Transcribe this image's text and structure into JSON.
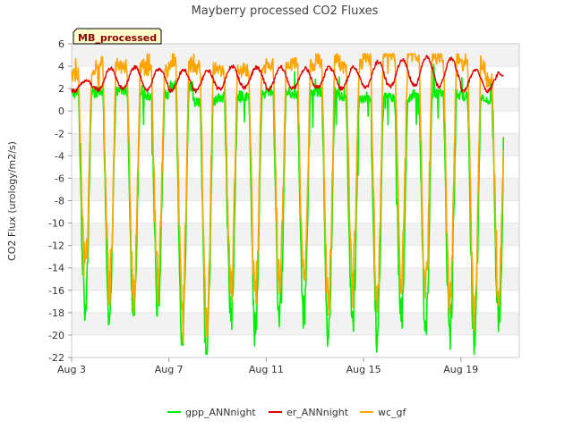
{
  "chart_data": {
    "type": "line",
    "title": "Mayberry processed CO2 Fluxes",
    "ylabel": "CO2 Flux (urology/m2/s)",
    "xlabel": "",
    "badge": "MB_processed",
    "ylim": [
      -22,
      6
    ],
    "yticks": [
      6,
      4,
      2,
      0,
      -2,
      -4,
      -6,
      -8,
      -10,
      -12,
      -14,
      -16,
      -18,
      -20,
      -22
    ],
    "xlim": [
      3,
      21.4
    ],
    "xticks": [
      {
        "label": "Aug 3",
        "value": 3
      },
      {
        "label": "Aug 7",
        "value": 7
      },
      {
        "label": "Aug 11",
        "value": 11
      },
      {
        "label": "Aug 15",
        "value": 15
      },
      {
        "label": "Aug 19",
        "value": 19
      }
    ],
    "grid": "horizontal-bands",
    "legend_placement": "bottom",
    "days": [
      3,
      4,
      5,
      6,
      7,
      8,
      9,
      10,
      11,
      12,
      13,
      14,
      15,
      16,
      17,
      18,
      19,
      20
    ],
    "series": [
      {
        "name": "gpp_ANNnight",
        "color": "#00ee00",
        "day_min": [
          -17.5,
          -18.2,
          -17.8,
          -17.2,
          -19.9,
          -21.6,
          -18.3,
          -19.7,
          -18.5,
          -18.1,
          -19.5,
          -18.9,
          -20.1,
          -18.4,
          -19.2,
          -19.8,
          -20.9,
          -18.6
        ],
        "day_max": [
          1.6,
          1.7,
          1.8,
          1.4,
          2.2,
          0.9,
          1.3,
          1.4,
          1.8,
          1.5,
          1.7,
          1.2,
          1.2,
          1.3,
          1.4,
          1.5,
          1.3,
          0.9
        ]
      },
      {
        "name": "er_ANNnight",
        "color": "#dd0000",
        "day_min": [
          1.8,
          1.9,
          2.0,
          1.9,
          1.8,
          1.8,
          2.0,
          2.1,
          1.9,
          2.0,
          2.1,
          2.0,
          2.1,
          2.2,
          2.3,
          2.2,
          1.8,
          1.8
        ],
        "day_max": [
          2.7,
          3.8,
          3.9,
          3.8,
          3.7,
          3.6,
          4.0,
          3.9,
          3.9,
          3.8,
          3.9,
          3.9,
          4.4,
          4.6,
          4.9,
          4.7,
          3.7,
          3.4
        ]
      },
      {
        "name": "wc_gf",
        "color": "#ffa500",
        "day_min": [
          -14.2,
          -15.5,
          -15.8,
          -15.0,
          -17.6,
          -18.8,
          -15.3,
          -16.4,
          -15.2,
          -15.6,
          -16.8,
          -15.4,
          -16.1,
          -15.2,
          -15.8,
          -16.5,
          -17.6,
          -15.9
        ],
        "day_max": [
          3.2,
          4.2,
          4.0,
          3.6,
          4.2,
          3.9,
          3.5,
          3.7,
          4.1,
          4.2,
          4.5,
          4.0,
          5.0,
          5.1,
          4.9,
          4.8,
          4.0,
          2.8
        ]
      }
    ]
  }
}
